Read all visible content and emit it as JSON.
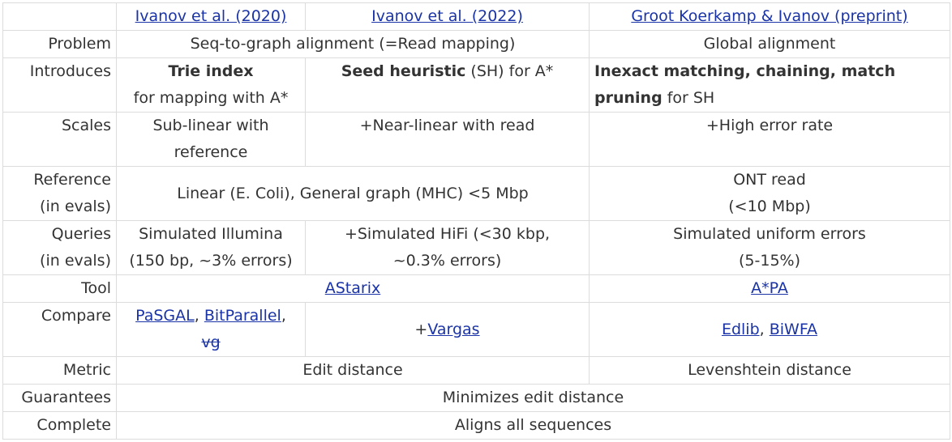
{
  "header": {
    "col1": "Ivanov et al. (2020)",
    "col2": "Ivanov et al. (2022)",
    "col3": "Groot Koerkamp & Ivanov (preprint)"
  },
  "rows": {
    "problem": {
      "label": "Problem",
      "c12": "Seq-to-graph alignment (=Read mapping)",
      "c3": "Global alignment"
    },
    "introduces": {
      "label": "Introduces",
      "c1_bold": "Trie index",
      "c1_rest": "for mapping with A*",
      "c2_bold": "Seed heuristic",
      "c2_rest": " (SH) for A*",
      "c3_bold_1": "Inexact matching, chaining, match",
      "c3_bold_2": "pruning",
      "c3_rest": " for SH"
    },
    "scales": {
      "label": "Scales",
      "c1_a": "Sub-linear with",
      "c1_b": "reference",
      "c2": "+Near-linear with read",
      "c3": "+High error rate"
    },
    "reference": {
      "label_a": "Reference",
      "label_b": "(in evals)",
      "c12": "Linear (E. Coli), General graph (MHC) <5 Mbp",
      "c3_a": "ONT read",
      "c3_b": "(<10 Mbp)"
    },
    "queries": {
      "label_a": "Queries",
      "label_b": "(in evals)",
      "c1_a": "Simulated Illumina",
      "c1_b": "(150 bp, ~3% errors)",
      "c2_a": "+Simulated HiFi (<30 kbp,",
      "c2_b": "~0.3% errors)",
      "c3_a": "Simulated uniform errors",
      "c3_b": "(5-15%)"
    },
    "tool": {
      "label": "Tool",
      "c12": "AStarix",
      "c3": "A*PA"
    },
    "compare": {
      "label": "Compare",
      "c1_link1": "PaSGAL",
      "c1_sep": ", ",
      "c1_link2": "BitParallel",
      "c1_comma": ",",
      "c1_struck": "vg",
      "c2_prefix": "+",
      "c2_link": "Vargas",
      "c3_link1": "Edlib",
      "c3_sep": ", ",
      "c3_link2": "BiWFA"
    },
    "metric": {
      "label": "Metric",
      "c12": "Edit distance",
      "c3": "Levenshtein distance"
    },
    "guarantees": {
      "label": "Guarantees",
      "all": "Minimizes edit distance"
    },
    "complete": {
      "label": "Complete",
      "all": "Aligns all sequences"
    }
  }
}
